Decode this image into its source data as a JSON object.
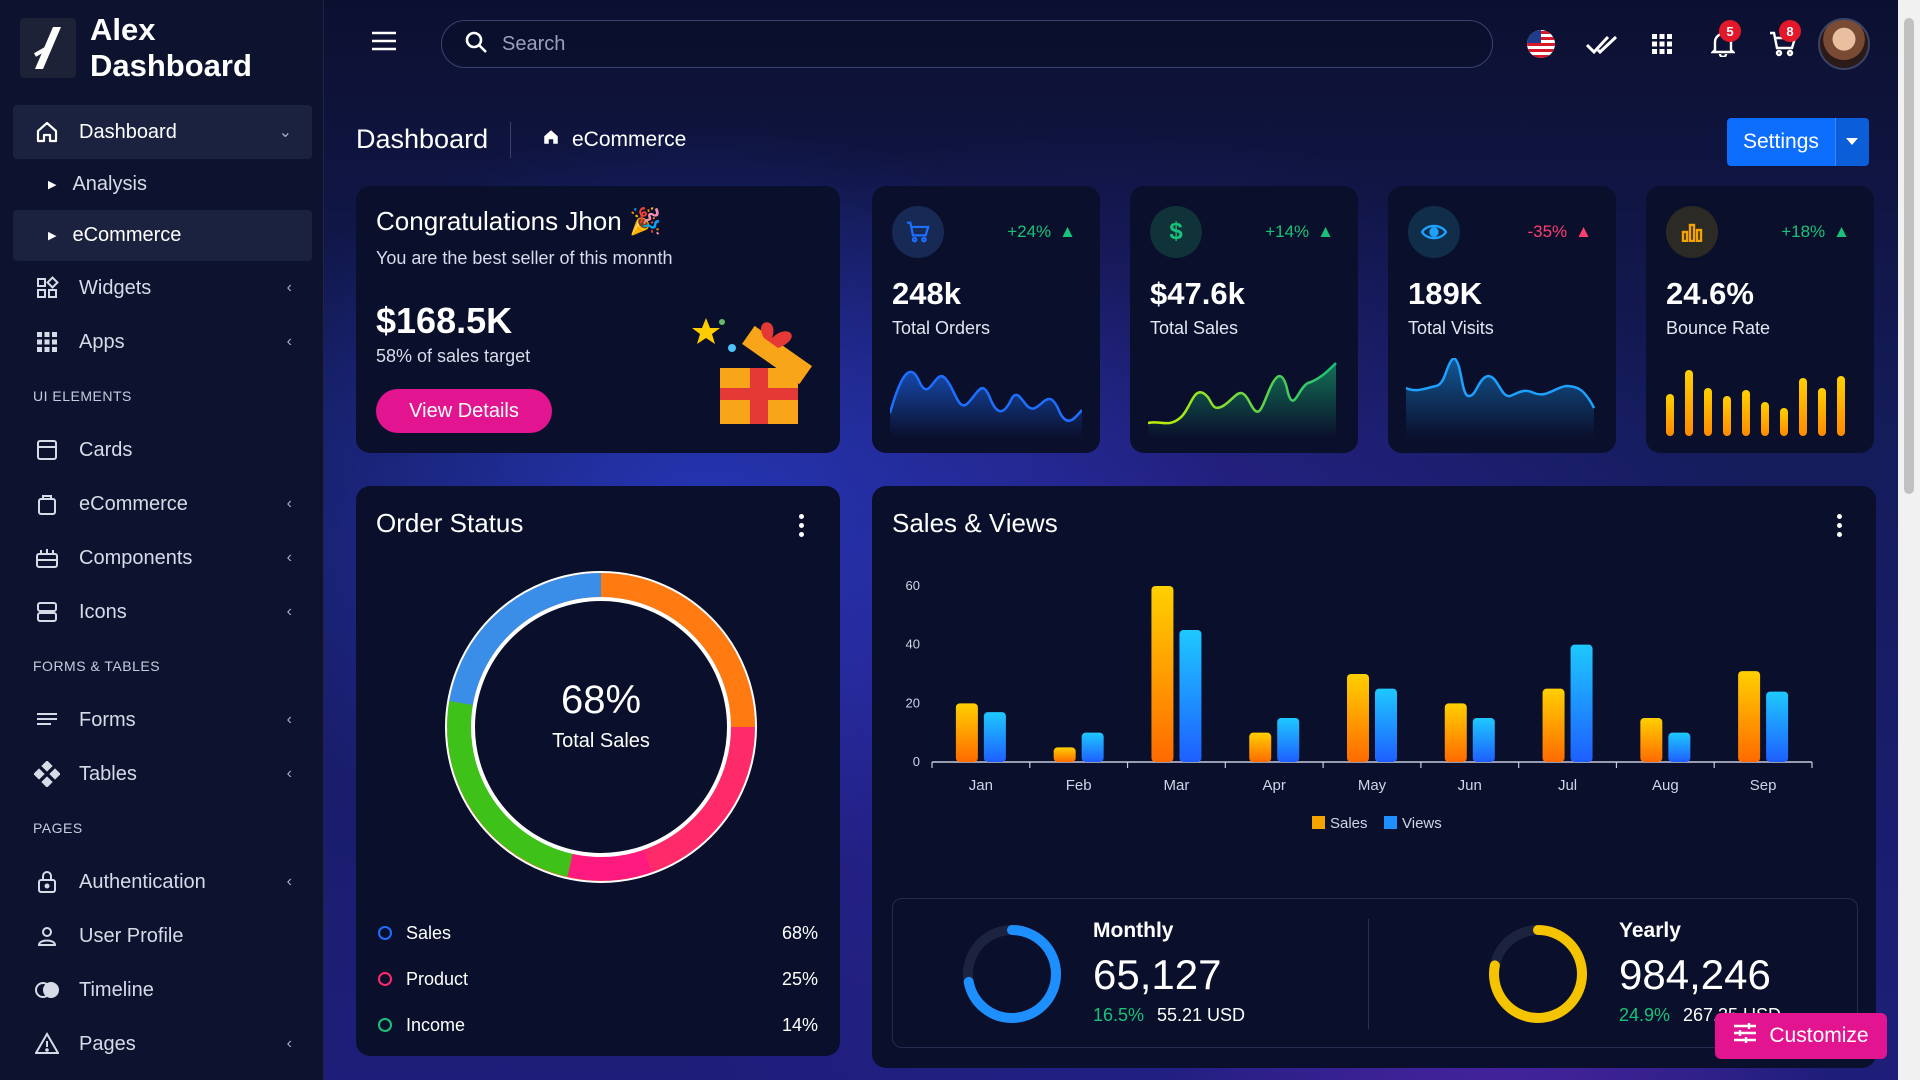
{
  "app": {
    "name_line1": "Alex",
    "name_line2": "Dashboard"
  },
  "sidebar": {
    "items": [
      {
        "label": "Dashboard",
        "icon": "home-icon",
        "active": true
      },
      {
        "label": "Analysis",
        "sub": true
      },
      {
        "label": "eCommerce",
        "sub": true,
        "active": true
      },
      {
        "label": "Widgets",
        "icon": "widgets-icon"
      },
      {
        "label": "Apps",
        "icon": "grid-icon"
      },
      {
        "heading": "UI ELEMENTS"
      },
      {
        "label": "Cards",
        "icon": "card-icon"
      },
      {
        "label": "eCommerce",
        "icon": "bag-icon"
      },
      {
        "label": "Components",
        "icon": "components-icon"
      },
      {
        "label": "Icons",
        "icon": "icons-icon"
      },
      {
        "heading": "FORMS & TABLES"
      },
      {
        "label": "Forms",
        "icon": "forms-icon"
      },
      {
        "label": "Tables",
        "icon": "tables-icon"
      },
      {
        "heading": "PAGES"
      },
      {
        "label": "Authentication",
        "icon": "lock-icon"
      },
      {
        "label": "User Profile",
        "icon": "user-icon"
      },
      {
        "label": "Timeline",
        "icon": "timeline-icon"
      },
      {
        "label": "Pages",
        "icon": "warning-icon"
      }
    ]
  },
  "header": {
    "search_placeholder": "Search",
    "notifications_count": "5",
    "cart_count": "8"
  },
  "page": {
    "title": "Dashboard",
    "breadcrumb": "eCommerce",
    "settings_label": "Settings"
  },
  "congrats": {
    "title": "Congratulations Jhon",
    "subtitle": "You are the best seller of this monnth",
    "amount": "$168.5K",
    "target": "58% of sales target",
    "button": "View Details"
  },
  "stats": [
    {
      "value": "248k",
      "label": "Total Orders",
      "change": "+24%",
      "trend": "up",
      "color": "#1e6fff"
    },
    {
      "value": "$47.6k",
      "label": "Total Sales",
      "change": "+14%",
      "trend": "up",
      "color": "#19c27a"
    },
    {
      "value": "189K",
      "label": "Total Visits",
      "change": "-35%",
      "trend": "up",
      "color": "#1ea0ff"
    },
    {
      "value": "24.6%",
      "label": "Bounce Rate",
      "change": "+18%",
      "trend": "up",
      "color": "#f5a300"
    }
  ],
  "order_status": {
    "title": "Order Status",
    "center_value": "68%",
    "center_label": "Total Sales",
    "legend": [
      {
        "label": "Sales",
        "value": "68%",
        "color": "#1e6fff"
      },
      {
        "label": "Product",
        "value": "25%",
        "color": "#ff2a6a"
      },
      {
        "label": "Income",
        "value": "14%",
        "color": "#19c27a"
      }
    ]
  },
  "sales_views": {
    "title": "Sales & Views",
    "monthly": {
      "label": "Monthly",
      "value": "65,127",
      "pct": "16.5%",
      "usd": "55.21 USD",
      "ring_fraction": 0.72
    },
    "yearly": {
      "label": "Yearly",
      "value": "984,246",
      "pct": "24.9%",
      "usd": "267.35 USD",
      "ring_fraction": 0.78
    }
  },
  "chart_data": {
    "type": "bar",
    "categories": [
      "Jan",
      "Feb",
      "Mar",
      "Apr",
      "May",
      "Jun",
      "Jul",
      "Aug",
      "Sep"
    ],
    "series": [
      {
        "name": "Sales",
        "values": [
          20,
          5,
          60,
          10,
          30,
          20,
          25,
          15,
          31
        ],
        "color": "#f5a300"
      },
      {
        "name": "Views",
        "values": [
          17,
          10,
          45,
          15,
          25,
          15,
          40,
          10,
          24
        ],
        "color": "#1e8fff"
      }
    ],
    "ylim": [
      0,
      60
    ],
    "yticks": [
      0,
      20,
      40,
      60
    ],
    "legend": "bottom-center"
  },
  "customize_label": "Customize"
}
